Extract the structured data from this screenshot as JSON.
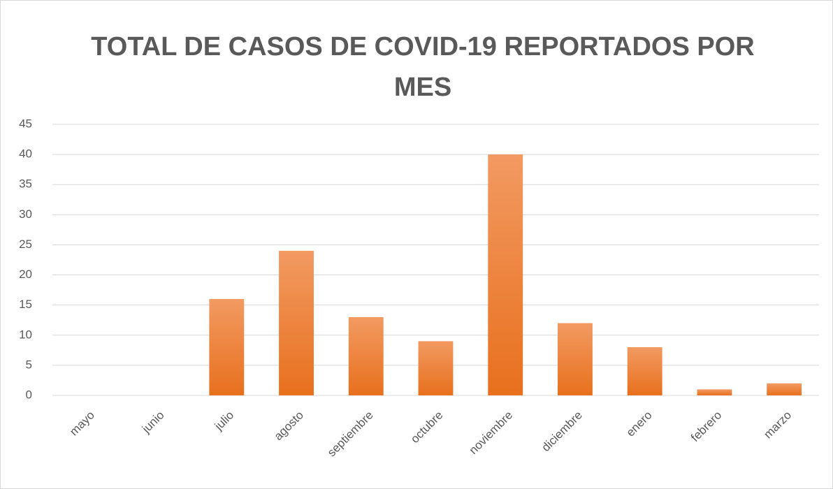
{
  "chart_data": {
    "type": "bar",
    "title": "TOTAL DE CASOS DE COVID-19 REPORTADOS POR MES",
    "categories": [
      "mayo",
      "junio",
      "julio",
      "agosto",
      "septiembre",
      "octubre",
      "noviembre",
      "diciembre",
      "enero",
      "febrero",
      "marzo"
    ],
    "values": [
      0,
      0,
      16,
      24,
      13,
      9,
      40,
      12,
      8,
      1,
      2
    ],
    "color": "#ed7d31",
    "ylim": [
      0,
      45
    ],
    "yticks": [
      0,
      5,
      10,
      15,
      20,
      25,
      30,
      35,
      40,
      45
    ],
    "grid": true
  }
}
